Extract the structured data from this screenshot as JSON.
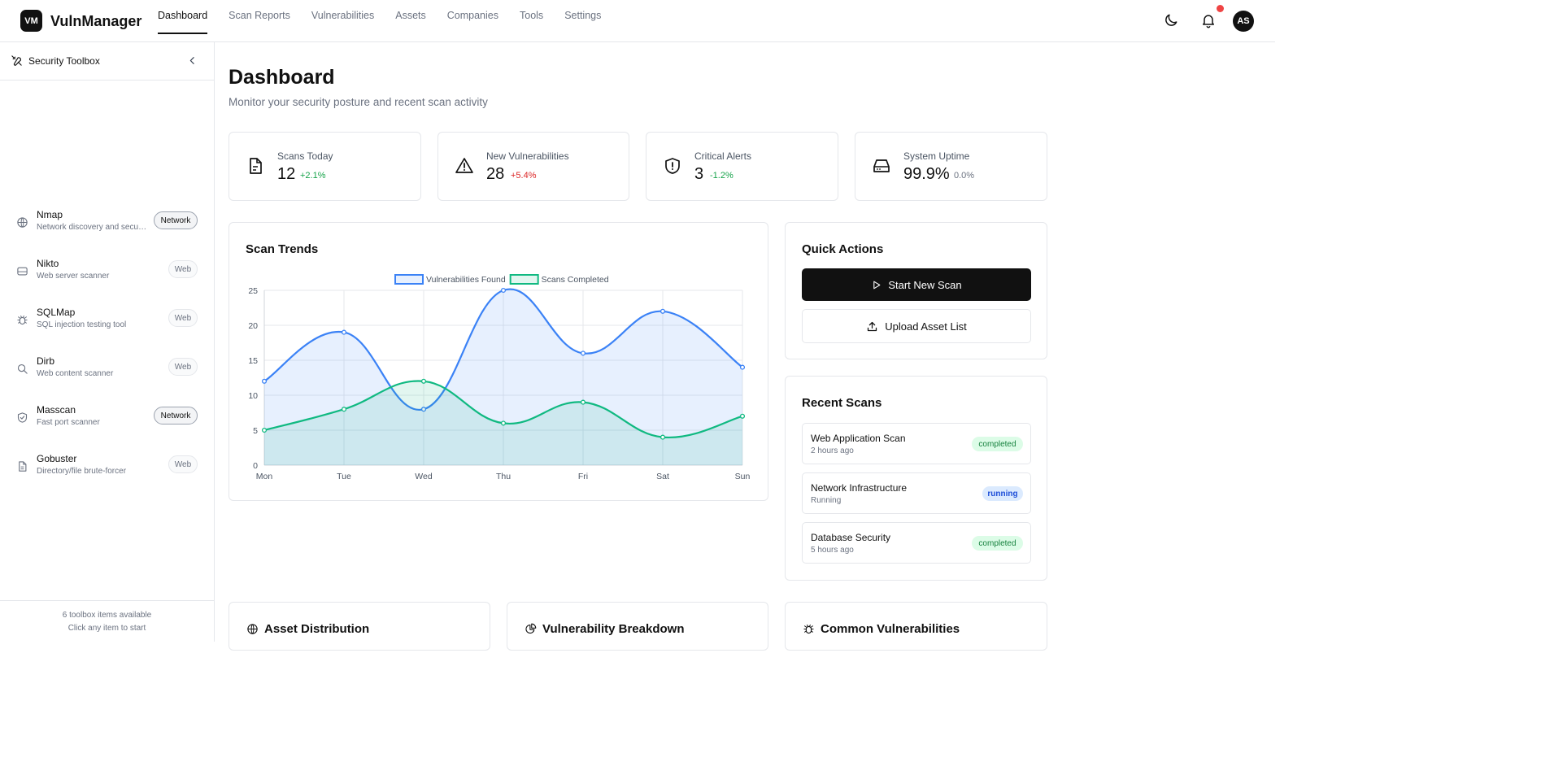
{
  "app": {
    "logo": "VM",
    "name": "VulnManager"
  },
  "nav": [
    "Dashboard",
    "Scan Reports",
    "Vulnerabilities",
    "Assets",
    "Companies",
    "Tools",
    "Settings"
  ],
  "user": {
    "initials": "AS"
  },
  "sidebar": {
    "title": "Security Toolbox",
    "tools": [
      {
        "name": "Nmap",
        "desc": "Network discovery and security auditing",
        "tag": "Network",
        "icon": "globe-icon"
      },
      {
        "name": "Nikto",
        "desc": "Web server scanner",
        "tag": "Web",
        "icon": "server-icon"
      },
      {
        "name": "SQLMap",
        "desc": "SQL injection testing tool",
        "tag": "Web",
        "icon": "bug-icon"
      },
      {
        "name": "Dirb",
        "desc": "Web content scanner",
        "tag": "Web",
        "icon": "search-icon"
      },
      {
        "name": "Masscan",
        "desc": "Fast port scanner",
        "tag": "Network",
        "icon": "shield-check-icon"
      },
      {
        "name": "Gobuster",
        "desc": "Directory/file brute-forcer",
        "tag": "Web",
        "icon": "file-icon"
      }
    ],
    "footer_count": "6 toolbox items available",
    "footer_hint": "Click any item to start"
  },
  "page": {
    "title": "Dashboard",
    "subtitle": "Monitor your security posture and recent scan activity"
  },
  "stats": [
    {
      "label": "Scans Today",
      "value": "12",
      "change": "+2.1%",
      "tone": "green",
      "icon": "document-icon"
    },
    {
      "label": "New Vulnerabilities",
      "value": "28",
      "change": "+5.4%",
      "tone": "red",
      "icon": "warning-icon"
    },
    {
      "label": "Critical Alerts",
      "value": "3",
      "change": "-1.2%",
      "tone": "green",
      "icon": "shield-alert-icon"
    },
    {
      "label": "System Uptime",
      "value": "99.9%",
      "change": "0.0%",
      "tone": "gray",
      "icon": "hard-drive-icon"
    }
  ],
  "trends": {
    "title": "Scan Trends"
  },
  "chart_data": {
    "type": "area",
    "categories": [
      "Mon",
      "Tue",
      "Wed",
      "Thu",
      "Fri",
      "Sat",
      "Sun"
    ],
    "series": [
      {
        "name": "Vulnerabilities Found",
        "values": [
          12,
          19,
          8,
          25,
          16,
          22,
          14
        ],
        "color": "#3b82f6"
      },
      {
        "name": "Scans Completed",
        "values": [
          5,
          8,
          12,
          6,
          9,
          4,
          7
        ],
        "color": "#10b981"
      }
    ],
    "ylim": [
      0,
      25
    ],
    "yticks": [
      0,
      5,
      10,
      15,
      20,
      25
    ],
    "legend": "top-center",
    "grid": true
  },
  "quick_actions": {
    "title": "Quick Actions",
    "start_scan": "Start New Scan",
    "upload": "Upload Asset List"
  },
  "recent_scans": {
    "title": "Recent Scans",
    "items": [
      {
        "name": "Web Application Scan",
        "time": "2 hours ago",
        "status": "completed"
      },
      {
        "name": "Network Infrastructure",
        "time": "Running",
        "status": "running"
      },
      {
        "name": "Database Security",
        "time": "5 hours ago",
        "status": "completed"
      }
    ]
  },
  "bottom_cards": [
    "Asset Distribution",
    "Vulnerability Breakdown",
    "Common Vulnerabilities"
  ],
  "colors": {
    "accent": "#111111",
    "vuln_line": "#3b82f6",
    "scan_line": "#10b981",
    "notification": "#ef4444"
  }
}
